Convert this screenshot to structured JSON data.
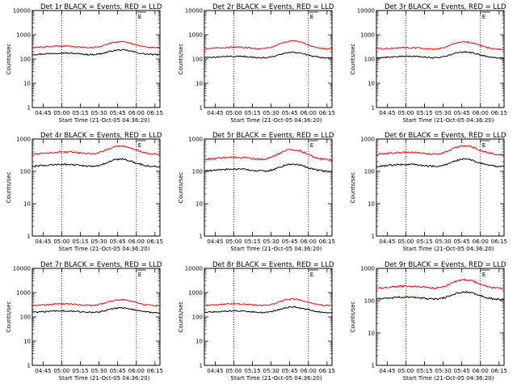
{
  "chart_data": [
    {
      "type": "line",
      "title": "Det 1r BLACK = Events, RED = LLD",
      "xlabel": "Start Time (21-Oct-05 04:36:20)",
      "ylabel": "Counts/sec",
      "yscale": "log",
      "ylim": [
        1,
        10000
      ],
      "x_ticks": [
        "04:45",
        "05:00",
        "05:15",
        "05:30",
        "05:45",
        "06:00",
        "06:15"
      ],
      "y_ticks": [
        "1",
        "10",
        "100",
        "1000",
        "10000"
      ],
      "marker_label": "E",
      "dotted_lines_at": [
        "05:00",
        "06:00"
      ],
      "series": [
        {
          "name": "Events",
          "color": "#000000",
          "base": 150,
          "peak": 240,
          "peak_time": "05:47"
        },
        {
          "name": "LLD",
          "color": "#ff0000",
          "base": 290,
          "peak": 520,
          "peak_time": "05:47"
        }
      ]
    },
    {
      "type": "line",
      "title": "Det 2r BLACK = Events, RED = LLD",
      "xlabel": "Start Time (21-Oct-05 04:36:20)",
      "ylabel": "Counts/sec",
      "yscale": "log",
      "ylim": [
        1,
        10000
      ],
      "x_ticks": [
        "04:45",
        "05:00",
        "05:15",
        "05:30",
        "05:45",
        "06:00",
        "06:15"
      ],
      "y_ticks": [
        "1",
        "10",
        "100",
        "1000",
        "10000"
      ],
      "marker_label": "E",
      "dotted_lines_at": [
        "05:00",
        "06:00"
      ],
      "series": [
        {
          "name": "Events",
          "color": "#000000",
          "base": 110,
          "peak": 190,
          "peak_time": "05:47"
        },
        {
          "name": "LLD",
          "color": "#ff0000",
          "base": 260,
          "peak": 560,
          "peak_time": "05:47"
        }
      ]
    },
    {
      "type": "line",
      "title": "Det 3r BLACK = Events, RED = LLD",
      "xlabel": "Start Time (21-Oct-05 04:36:20)",
      "ylabel": "Counts/sec",
      "yscale": "log",
      "ylim": [
        1,
        10000
      ],
      "x_ticks": [
        "04:45",
        "05:00",
        "05:15",
        "05:30",
        "05:45",
        "06:00",
        "06:15"
      ],
      "y_ticks": [
        "1",
        "10",
        "100",
        "1000",
        "10000"
      ],
      "marker_label": "E",
      "dotted_lines_at": [
        "05:00",
        "06:00"
      ],
      "series": [
        {
          "name": "Events",
          "color": "#000000",
          "base": 110,
          "peak": 200,
          "peak_time": "05:47"
        },
        {
          "name": "LLD",
          "color": "#ff0000",
          "base": 250,
          "peak": 520,
          "peak_time": "05:47"
        }
      ]
    },
    {
      "type": "line",
      "title": "Det 4r BLACK = Events, RED = LLD",
      "xlabel": "Start Time (21-Oct-05 04:36:20)",
      "ylabel": "Counts/sec",
      "yscale": "log",
      "ylim": [
        1,
        1000
      ],
      "x_ticks": [
        "04:45",
        "05:00",
        "05:15",
        "05:30",
        "05:45",
        "06:00",
        "06:15"
      ],
      "y_ticks": [
        "1",
        "10",
        "100",
        "1000"
      ],
      "marker_label": "E",
      "dotted_lines_at": [
        "05:00",
        "06:00"
      ],
      "series": [
        {
          "name": "Events",
          "color": "#000000",
          "base": 140,
          "peak": 240,
          "peak_time": "05:47"
        },
        {
          "name": "LLD",
          "color": "#ff0000",
          "base": 340,
          "peak": 620,
          "peak_time": "05:47"
        }
      ]
    },
    {
      "type": "line",
      "title": "Det 5r BLACK = Events, RED = LLD",
      "xlabel": "Start Time (21-Oct-05 04:36:20)",
      "ylabel": "Counts/sec",
      "yscale": "log",
      "ylim": [
        1,
        1000
      ],
      "x_ticks": [
        "04:45",
        "05:00",
        "05:15",
        "05:30",
        "05:45",
        "06:00",
        "06:15"
      ],
      "y_ticks": [
        "1",
        "10",
        "100",
        "1000"
      ],
      "marker_label": "E",
      "dotted_lines_at": [
        "05:00",
        "06:00"
      ],
      "series": [
        {
          "name": "Events",
          "color": "#000000",
          "base": 100,
          "peak": 170,
          "peak_time": "05:47"
        },
        {
          "name": "LLD",
          "color": "#ff0000",
          "base": 230,
          "peak": 480,
          "peak_time": "05:47"
        }
      ]
    },
    {
      "type": "line",
      "title": "Det 6r BLACK = Events, RED = LLD",
      "xlabel": "Start Time (21-Oct-05 04:36:20)",
      "ylabel": "Counts/sec",
      "yscale": "log",
      "ylim": [
        1,
        1000
      ],
      "x_ticks": [
        "04:45",
        "05:00",
        "05:15",
        "05:30",
        "05:45",
        "06:00",
        "06:15"
      ],
      "y_ticks": [
        "1",
        "10",
        "100",
        "1000"
      ],
      "marker_label": "E",
      "dotted_lines_at": [
        "05:00",
        "06:00"
      ],
      "series": [
        {
          "name": "Events",
          "color": "#000000",
          "base": 140,
          "peak": 240,
          "peak_time": "05:47"
        },
        {
          "name": "LLD",
          "color": "#ff0000",
          "base": 330,
          "peak": 620,
          "peak_time": "05:47"
        }
      ]
    },
    {
      "type": "line",
      "title": "Det 7r BLACK = Events, RED = LLD",
      "xlabel": "Start Time (21-Oct-05 04:36:20)",
      "ylabel": "Counts/sec",
      "yscale": "log",
      "ylim": [
        1,
        10000
      ],
      "x_ticks": [
        "04:45",
        "05:00",
        "05:15",
        "05:30",
        "05:45",
        "06:00",
        "06:15"
      ],
      "y_ticks": [
        "1",
        "10",
        "100",
        "1000",
        "10000"
      ],
      "marker_label": "E",
      "dotted_lines_at": [
        "05:00",
        "06:00"
      ],
      "series": [
        {
          "name": "Events",
          "color": "#000000",
          "base": 150,
          "peak": 240,
          "peak_time": "05:47"
        },
        {
          "name": "LLD",
          "color": "#ff0000",
          "base": 290,
          "peak": 520,
          "peak_time": "05:47"
        }
      ]
    },
    {
      "type": "line",
      "title": "Det 8r BLACK = Events, RED = LLD",
      "xlabel": "Start Time (21-Oct-05 04:36:20)",
      "ylabel": "Counts/sec",
      "yscale": "log",
      "ylim": [
        1,
        10000
      ],
      "x_ticks": [
        "04:45",
        "05:00",
        "05:15",
        "05:30",
        "05:45",
        "06:00",
        "06:15"
      ],
      "y_ticks": [
        "1",
        "10",
        "100",
        "1000",
        "10000"
      ],
      "marker_label": "E",
      "dotted_lines_at": [
        "05:00",
        "06:00"
      ],
      "series": [
        {
          "name": "Events",
          "color": "#000000",
          "base": 150,
          "peak": 260,
          "peak_time": "05:47"
        },
        {
          "name": "LLD",
          "color": "#ff0000",
          "base": 290,
          "peak": 550,
          "peak_time": "05:47"
        }
      ]
    },
    {
      "type": "line",
      "title": "Det 9r BLACK = Events, RED = LLD",
      "xlabel": "Start Time (21-Oct-05 04:36:20)",
      "ylabel": "Counts/sec",
      "yscale": "log",
      "ylim": [
        1,
        1000
      ],
      "x_ticks": [
        "04:45",
        "05:00",
        "05:15",
        "05:30",
        "05:45",
        "06:00",
        "06:15"
      ],
      "y_ticks": [
        "1",
        "10",
        "100",
        "1000"
      ],
      "marker_label": "E",
      "dotted_lines_at": [
        "05:00",
        "06:00"
      ],
      "series": [
        {
          "name": "Events",
          "color": "#000000",
          "base": 110,
          "peak": 190,
          "peak_time": "05:47"
        },
        {
          "name": "LLD",
          "color": "#ff0000",
          "base": 240,
          "peak": 450,
          "peak_time": "05:47"
        }
      ]
    }
  ]
}
